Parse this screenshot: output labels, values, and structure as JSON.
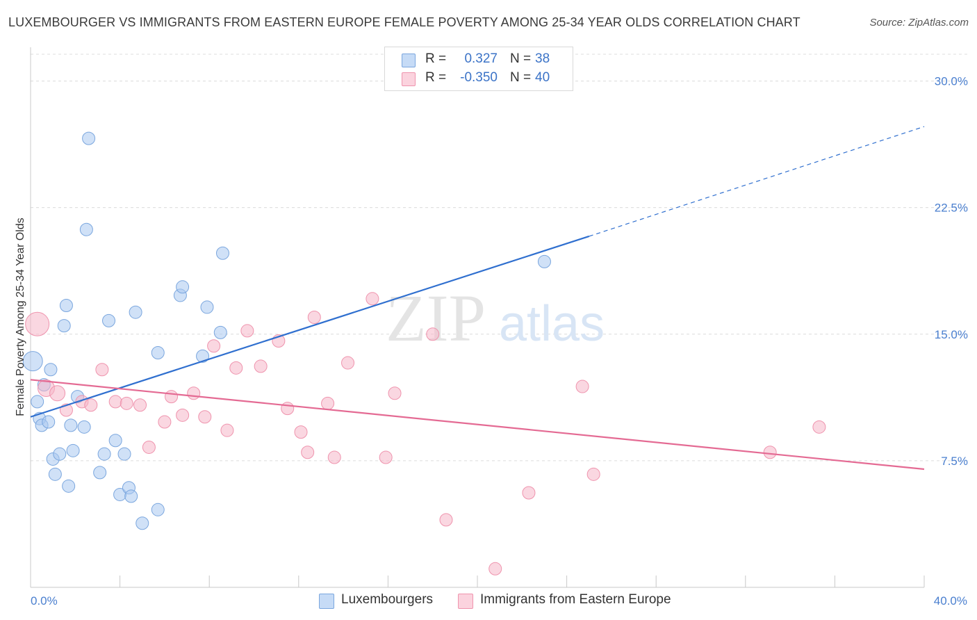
{
  "title": "LUXEMBOURGER VS IMMIGRANTS FROM EASTERN EUROPE FEMALE POVERTY AMONG 25-34 YEAR OLDS CORRELATION CHART",
  "source": "Source: ZipAtlas.com",
  "watermark": {
    "zip": "ZIP",
    "atlas": "atlas"
  },
  "legend": {
    "rows": [
      {
        "r_label": "R =",
        "r_value": "0.327",
        "n_label": "N =",
        "n_value": "38",
        "color": "#a9c8f0"
      },
      {
        "r_label": "R =",
        "r_value": "-0.350",
        "n_label": "N =",
        "n_value": "40",
        "color": "#f6b7c8"
      }
    ]
  },
  "bottom_legend": {
    "items": [
      {
        "label": "Luxembourgers",
        "color": "#a9c8f0"
      },
      {
        "label": "Immigrants from Eastern Europe",
        "color": "#f6b7c8"
      }
    ]
  },
  "chart_data": {
    "type": "scatter",
    "title": "LUXEMBOURGER VS IMMIGRANTS FROM EASTERN EUROPE FEMALE POVERTY AMONG 25-34 YEAR OLDS CORRELATION CHART",
    "xlabel": "",
    "ylabel": "Female Poverty Among 25-34 Year Olds",
    "xlim": [
      0,
      40
    ],
    "ylim": [
      0,
      32
    ],
    "x_tick_labels": [
      "0.0%",
      "40.0%"
    ],
    "y_ticks": [
      7.5,
      15.0,
      22.5,
      30.0
    ],
    "y_tick_labels": [
      "7.5%",
      "15.0%",
      "22.5%",
      "30.0%"
    ],
    "grid": true,
    "series": [
      {
        "name": "Luxembourgers",
        "color": "#a9c8f0",
        "stroke": "#7aa6de",
        "trend": {
          "x0": 0.0,
          "y0": 10.1,
          "x1": 25.0,
          "y1": 20.8,
          "dash_to_x": 40.0,
          "dash_to_y": 27.3,
          "color": "#2f6fcf"
        },
        "points": [
          [
            0.1,
            13.4
          ],
          [
            0.3,
            11.0
          ],
          [
            0.4,
            10.0
          ],
          [
            0.6,
            12.0
          ],
          [
            0.5,
            9.6
          ],
          [
            0.8,
            9.8
          ],
          [
            0.9,
            12.9
          ],
          [
            1.0,
            7.6
          ],
          [
            1.1,
            6.7
          ],
          [
            1.3,
            7.9
          ],
          [
            1.5,
            15.5
          ],
          [
            1.6,
            16.7
          ],
          [
            1.7,
            6.0
          ],
          [
            1.8,
            9.6
          ],
          [
            1.9,
            8.1
          ],
          [
            2.1,
            11.3
          ],
          [
            2.4,
            9.5
          ],
          [
            2.6,
            26.6
          ],
          [
            2.5,
            21.2
          ],
          [
            3.1,
            6.8
          ],
          [
            3.3,
            7.9
          ],
          [
            3.5,
            15.8
          ],
          [
            3.8,
            8.7
          ],
          [
            4.0,
            5.5
          ],
          [
            4.2,
            7.9
          ],
          [
            4.4,
            5.9
          ],
          [
            4.5,
            5.4
          ],
          [
            4.7,
            16.3
          ],
          [
            5.0,
            3.8
          ],
          [
            5.7,
            4.6
          ],
          [
            5.7,
            13.9
          ],
          [
            6.7,
            17.3
          ],
          [
            6.8,
            17.8
          ],
          [
            7.7,
            13.7
          ],
          [
            7.9,
            16.6
          ],
          [
            8.5,
            15.1
          ],
          [
            8.6,
            19.8
          ],
          [
            23.0,
            19.3
          ]
        ],
        "sizes": [
          14,
          9,
          9,
          9,
          9,
          9,
          9,
          9,
          9,
          9,
          9,
          9,
          9,
          9,
          9,
          9,
          9,
          9,
          9,
          9,
          9,
          9,
          9,
          9,
          9,
          9,
          9,
          9,
          9,
          9,
          9,
          9,
          9,
          9,
          9,
          9,
          9,
          9
        ]
      },
      {
        "name": "Immigrants from Eastern Europe",
        "color": "#f6b7c8",
        "stroke": "#ef93ad",
        "trend": {
          "x0": 0.0,
          "y0": 12.3,
          "x1": 40.0,
          "y1": 7.0,
          "color": "#e46a93"
        },
        "points": [
          [
            0.3,
            15.6
          ],
          [
            0.7,
            11.8
          ],
          [
            1.2,
            11.5
          ],
          [
            1.6,
            10.5
          ],
          [
            2.3,
            11.0
          ],
          [
            2.7,
            10.8
          ],
          [
            3.2,
            12.9
          ],
          [
            3.8,
            11.0
          ],
          [
            4.3,
            10.9
          ],
          [
            4.9,
            10.8
          ],
          [
            5.3,
            8.3
          ],
          [
            6.0,
            9.8
          ],
          [
            6.3,
            11.3
          ],
          [
            6.8,
            10.2
          ],
          [
            7.3,
            11.5
          ],
          [
            7.8,
            10.1
          ],
          [
            8.2,
            14.3
          ],
          [
            8.8,
            9.3
          ],
          [
            9.2,
            13.0
          ],
          [
            9.7,
            15.2
          ],
          [
            10.3,
            13.1
          ],
          [
            11.1,
            14.6
          ],
          [
            11.5,
            10.6
          ],
          [
            12.1,
            9.2
          ],
          [
            12.4,
            8.0
          ],
          [
            12.7,
            16.0
          ],
          [
            13.3,
            10.9
          ],
          [
            13.6,
            7.7
          ],
          [
            14.2,
            13.3
          ],
          [
            15.3,
            17.1
          ],
          [
            15.9,
            7.7
          ],
          [
            16.3,
            11.5
          ],
          [
            18.0,
            15.0
          ],
          [
            18.6,
            4.0
          ],
          [
            20.8,
            1.1
          ],
          [
            22.3,
            5.6
          ],
          [
            24.7,
            11.9
          ],
          [
            25.2,
            6.7
          ],
          [
            33.1,
            8.0
          ],
          [
            35.3,
            9.5
          ]
        ],
        "sizes": [
          17,
          12,
          11,
          9,
          9,
          9,
          9,
          9,
          9,
          9,
          9,
          9,
          9,
          9,
          9,
          9,
          9,
          9,
          9,
          9,
          9,
          9,
          9,
          9,
          9,
          9,
          9,
          9,
          9,
          9,
          9,
          9,
          9,
          9,
          9,
          9,
          9,
          9,
          9,
          9
        ]
      }
    ]
  }
}
